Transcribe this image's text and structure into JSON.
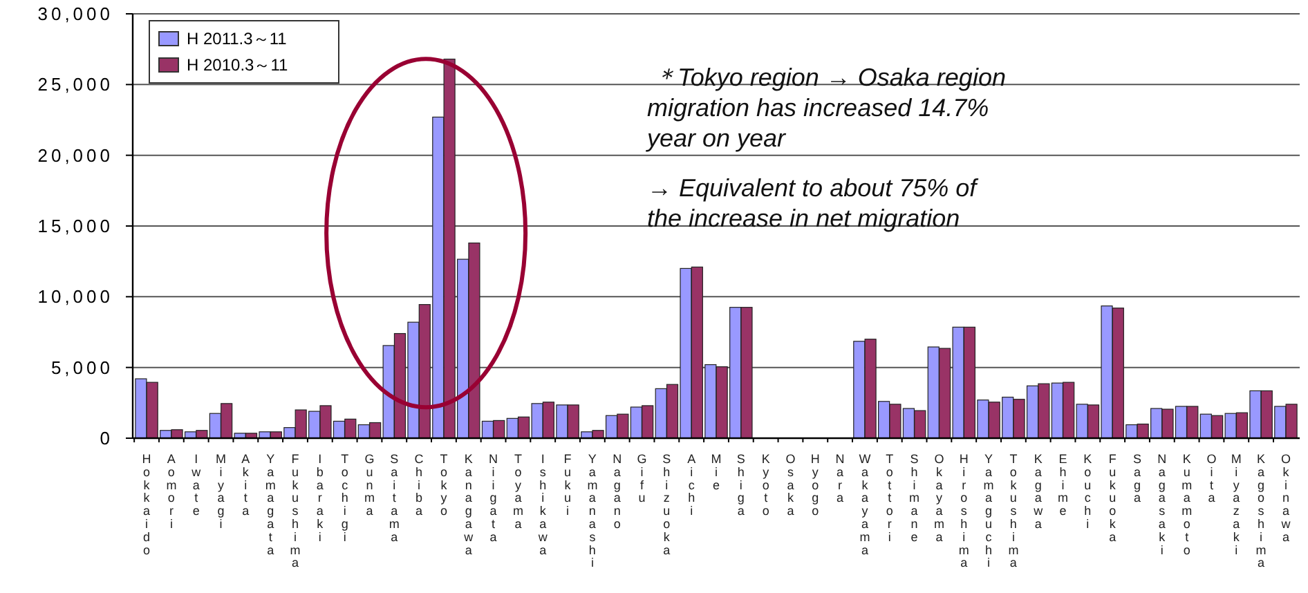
{
  "chart_data": {
    "type": "bar",
    "categories": [
      "Hokkaido",
      "Aomori",
      "Iwate",
      "Miyagi",
      "Akita",
      "Yamagata",
      "Fukushima",
      "Ibaraki",
      "Tochigi",
      "Gunma",
      "Saitama",
      "Chiba",
      "Tokyo",
      "Kanagawa",
      "Niigata",
      "Toyama",
      "Ishikawa",
      "Fukui",
      "Yamanashi",
      "Nagano",
      "Gifu",
      "Shizuoka",
      "Aichi",
      "Mie",
      "Shiga",
      "Kyoto",
      "Osaka",
      "Hyogo",
      "Nara",
      "Wakayama",
      "Tottori",
      "Shimane",
      "Okayama",
      "Hiroshima",
      "Yamaguchi",
      "Tokushima",
      "Kagawa",
      "Ehime",
      "Kouchi",
      "Fukuoka",
      "Saga",
      "Nagasaki",
      "Kumamoto",
      "Oita",
      "Miyazaki",
      "Kagoshima",
      "Okinawa"
    ],
    "series": [
      {
        "name": "H  2011.3～11",
        "color": "#9999ff",
        "values": [
          4200,
          550,
          450,
          1750,
          350,
          450,
          750,
          1900,
          1200,
          950,
          6550,
          8200,
          22700,
          12650,
          1200,
          1400,
          2450,
          2350,
          450,
          1600,
          2200,
          3500,
          12000,
          5200,
          9250,
          null,
          null,
          null,
          null,
          6850,
          2600,
          2100,
          6450,
          7850,
          2700,
          2900,
          3700,
          3900,
          2400,
          9350,
          950,
          2100,
          2250,
          1700,
          1750,
          3350,
          2250
        ]
      },
      {
        "name": "H  2010.3～11",
        "color": "#993366",
        "values": [
          3950,
          600,
          550,
          2450,
          350,
          450,
          2000,
          2300,
          1350,
          1100,
          7400,
          9450,
          26800,
          13800,
          1250,
          1500,
          2550,
          2350,
          550,
          1700,
          2300,
          3800,
          12100,
          5050,
          9250,
          null,
          null,
          null,
          null,
          7000,
          2400,
          1950,
          6350,
          7850,
          2550,
          2750,
          3850,
          3950,
          2350,
          9200,
          1000,
          2050,
          2250,
          1600,
          1800,
          3350,
          2400
        ]
      }
    ],
    "ylim": [
      0,
      30000
    ],
    "yticks": [
      0,
      {
        "value": 5000,
        "label": "5,000"
      },
      {
        "value": 10000,
        "label": "10,000"
      },
      {
        "value": 15000,
        "label": "15,000"
      },
      {
        "value": 20000,
        "label": "20,000"
      },
      {
        "value": 25000,
        "label": "25,000"
      },
      {
        "value": 30000,
        "label": "30,000"
      }
    ],
    "grid": "y",
    "legend": "top left",
    "annotations": [
      "＊Tokyo region → Osaka region migration has increased 14.7% year on year",
      "→ Equivalent to about 75% of the increase in net migration"
    ]
  }
}
